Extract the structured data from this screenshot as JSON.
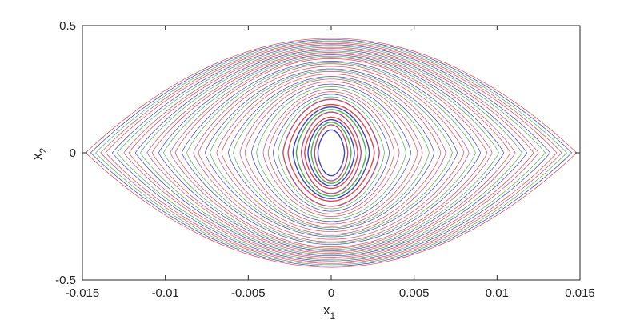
{
  "chart_data": {
    "type": "line",
    "title": "",
    "xlabel": {
      "base": "x",
      "sub": "1"
    },
    "ylabel": {
      "base": "x",
      "sub": "2"
    },
    "xlim": [
      -0.015,
      0.015
    ],
    "ylim": [
      -0.5,
      0.5
    ],
    "xticks": [
      -0.015,
      -0.01,
      -0.005,
      0,
      0.005,
      0.01,
      0.015
    ],
    "xtick_labels": [
      "-0.015",
      "-0.01",
      "-0.005",
      "0",
      "0.005",
      "0.01",
      "0.015"
    ],
    "yticks": [
      -0.5,
      0,
      0.5
    ],
    "ytick_labels": [
      "-0.5",
      "0",
      "0.5"
    ],
    "grid": false,
    "legend": "none",
    "series_colors": [
      "#d62728",
      "#2ca02c",
      "#1f1fbf",
      "#b03060"
    ],
    "description_of_marks": "many closed phase-plane trajectories (orbits) in red, green and blue, nested from a small lens near the origin out to a lens reaching x1 = ±0.0148 and x2 = ±0.45",
    "series": [
      {
        "name": "",
        "color": "#d62728",
        "x1_amplitudes": [
          0.0148,
          0.0136,
          0.0122,
          0.0108,
          0.0094,
          0.008,
          0.0066,
          0.0052,
          0.0038,
          0.0026,
          0.0016
        ],
        "x2_amplitudes": [
          0.45,
          0.43,
          0.41,
          0.39,
          0.37,
          0.34,
          0.31,
          0.28,
          0.24,
          0.19,
          0.14
        ]
      },
      {
        "name": "",
        "color": "#2ca02c",
        "x1_amplitudes": [
          0.0142,
          0.0129,
          0.0115,
          0.0101,
          0.0087,
          0.0073,
          0.0059,
          0.0045,
          0.0032,
          0.0021,
          0.0012
        ],
        "x2_amplitudes": [
          0.44,
          0.42,
          0.4,
          0.38,
          0.355,
          0.325,
          0.295,
          0.26,
          0.22,
          0.17,
          0.12
        ]
      },
      {
        "name": "",
        "color": "#1f1fbf",
        "x1_amplitudes": [
          0.0145,
          0.0132,
          0.0118,
          0.0104,
          0.009,
          0.0076,
          0.0062,
          0.0048,
          0.0035,
          0.0023,
          0.0014,
          0.0008
        ],
        "x2_amplitudes": [
          0.445,
          0.425,
          0.405,
          0.385,
          0.36,
          0.33,
          0.3,
          0.27,
          0.23,
          0.18,
          0.13,
          0.09
        ]
      },
      {
        "name": "",
        "color": "#b03060",
        "x1_amplitudes": [
          0.0139,
          0.0125,
          0.0111,
          0.0097,
          0.0083,
          0.0069,
          0.0055,
          0.0041,
          0.0029,
          0.0018,
          0.001
        ],
        "x2_amplitudes": [
          0.435,
          0.415,
          0.395,
          0.375,
          0.35,
          0.32,
          0.29,
          0.25,
          0.21,
          0.16,
          0.11
        ]
      }
    ]
  }
}
